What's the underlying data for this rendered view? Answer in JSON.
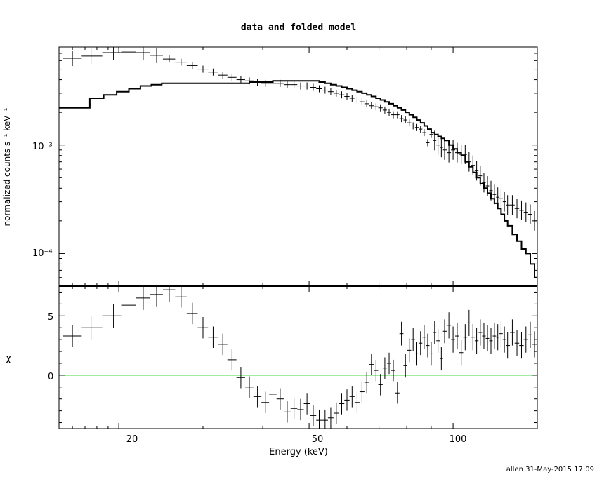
{
  "chart_data": {
    "type": "scatter",
    "title": "data and folded model",
    "xlabel": "Energy (keV)",
    "x_scale": "log",
    "xlim": [
      15,
      150
    ],
    "x_ticks": [
      20,
      50,
      100
    ],
    "x_tick_labels": [
      "20",
      "50",
      "100"
    ],
    "top_panel": {
      "ylabel": "normalized counts s⁻¹ keV⁻¹",
      "y_scale": "log",
      "ylim": [
        5e-05,
        0.008
      ],
      "y_ticks": [
        0.0001,
        0.001
      ],
      "y_tick_labels": [
        "10⁻⁴",
        "10⁻³"
      ],
      "series": [
        {
          "kind": "data",
          "x": [
            16.0,
            17.5,
            19.5,
            21.0,
            22.5,
            24.0,
            25.5,
            27.0,
            28.5,
            30.0,
            31.5,
            33.0,
            34.5,
            36.0,
            37.5,
            39.0,
            40.5,
            42.0,
            43.5,
            45.0,
            46.5,
            48.0,
            49.5,
            51.0,
            52.5,
            54.0,
            55.5,
            57.0,
            58.5,
            60.0,
            61.5,
            63.0,
            64.5,
            66.0,
            67.5,
            69.0,
            70.5,
            72.0,
            73.5,
            75.0,
            76.5,
            78.0,
            79.5,
            81.0,
            82.5,
            84.0,
            85.5,
            87.0,
            88.5,
            90.0,
            91.5,
            93.0,
            94.5,
            96.0,
            98.0,
            100.0,
            102.0,
            104.0,
            106.0,
            108.0,
            110.0,
            112.0,
            114.0,
            116.0,
            118.0,
            120.0,
            122.0,
            124.0,
            126.0,
            128.0,
            130.0,
            133.0,
            136.0,
            139.0,
            142.0,
            145.0,
            148.0
          ],
          "y": [
            0.0063,
            0.0066,
            0.0071,
            0.0072,
            0.0071,
            0.0067,
            0.0062,
            0.0058,
            0.0054,
            0.005,
            0.0047,
            0.0044,
            0.0042,
            0.004,
            0.0039,
            0.0038,
            0.0037,
            0.0037,
            0.0037,
            0.0036,
            0.0036,
            0.0035,
            0.0035,
            0.0034,
            0.0033,
            0.0032,
            0.0031,
            0.003,
            0.0029,
            0.0028,
            0.0027,
            0.0026,
            0.0025,
            0.0024,
            0.0023,
            0.00225,
            0.0022,
            0.0021,
            0.002,
            0.0019,
            0.0019,
            0.00175,
            0.0017,
            0.0016,
            0.0015,
            0.00145,
            0.0014,
            0.0013,
            0.00105,
            0.00125,
            0.0011,
            0.001,
            0.00095,
            0.0009,
            0.00085,
            0.0009,
            0.00085,
            0.00082,
            0.00082,
            0.0007,
            0.00065,
            0.00058,
            0.00052,
            0.00045,
            0.00042,
            0.00038,
            0.00035,
            0.00033,
            0.00032,
            0.0003,
            0.00028,
            0.00028,
            0.00026,
            0.00025,
            0.00024,
            0.00023,
            0.0002
          ]
        },
        {
          "kind": "model",
          "x": [
            15.0,
            16.2,
            17.4,
            18.6,
            19.8,
            21.0,
            22.2,
            23.4,
            24.6,
            25.8,
            27.0,
            28.5,
            30.0,
            31.5,
            33.0,
            34.5,
            36.0,
            37.5,
            39.0,
            40.5,
            42.0,
            43.5,
            45.0,
            46.5,
            48.0,
            49.5,
            51.0,
            52.5,
            54.0,
            55.5,
            57.0,
            58.5,
            60.0,
            61.5,
            63.0,
            64.5,
            66.0,
            67.5,
            69.0,
            70.5,
            72.0,
            73.5,
            75.0,
            76.5,
            78.0,
            79.5,
            81.0,
            82.5,
            84.0,
            85.5,
            87.0,
            88.5,
            90.0,
            91.5,
            93.0,
            94.5,
            96.0,
            98.0,
            100.0,
            102.0,
            104.0,
            106.0,
            108.0,
            110.0,
            112.0,
            114.0,
            116.0,
            118.0,
            120.0,
            122.0,
            124.0,
            126.0,
            128.0,
            130.0,
            133.0,
            136.0,
            139.0,
            142.0,
            145.0,
            148.0,
            150.0
          ],
          "y": [
            0.0022,
            0.0022,
            0.0027,
            0.0029,
            0.0031,
            0.0033,
            0.0035,
            0.0036,
            0.0037,
            0.0037,
            0.0037,
            0.0037,
            0.0037,
            0.0037,
            0.0037,
            0.0037,
            0.0037,
            0.0038,
            0.0038,
            0.0038,
            0.0039,
            0.0039,
            0.0039,
            0.0039,
            0.0039,
            0.0039,
            0.0039,
            0.0038,
            0.0037,
            0.0036,
            0.0035,
            0.0034,
            0.0033,
            0.0032,
            0.0031,
            0.003,
            0.0029,
            0.0028,
            0.0027,
            0.0026,
            0.0025,
            0.0024,
            0.0023,
            0.0022,
            0.0021,
            0.002,
            0.0019,
            0.0018,
            0.0017,
            0.0016,
            0.0015,
            0.0014,
            0.0013,
            0.00125,
            0.0012,
            0.00115,
            0.0011,
            0.001,
            0.00092,
            0.00085,
            0.0008,
            0.0007,
            0.00063,
            0.00056,
            0.0005,
            0.00044,
            0.0004,
            0.00036,
            0.00032,
            0.00029,
            0.00026,
            0.00023,
            0.0002,
            0.00018,
            0.00015,
            0.00013,
            0.00011,
            0.0001,
            8e-05,
            6e-05,
            6e-05
          ]
        }
      ]
    },
    "bottom_panel": {
      "ylabel": "χ",
      "ylim": [
        -4.5,
        7.5
      ],
      "y_ticks": [
        0,
        5
      ],
      "y_tick_labels": [
        "0",
        "5"
      ],
      "reference_line": {
        "y": 0,
        "color": "#00cc00"
      },
      "series": [
        {
          "kind": "residuals",
          "x": [
            16.0,
            17.5,
            19.5,
            21.0,
            22.5,
            24.0,
            25.5,
            27.0,
            28.5,
            30.0,
            31.5,
            33.0,
            34.5,
            36.0,
            37.5,
            39.0,
            40.5,
            42.0,
            43.5,
            45.0,
            46.5,
            48.0,
            49.5,
            51.0,
            52.5,
            54.0,
            55.5,
            57.0,
            58.5,
            60.0,
            61.5,
            63.0,
            64.5,
            66.0,
            67.5,
            69.0,
            70.5,
            72.0,
            73.5,
            75.0,
            76.5,
            78.0,
            79.5,
            81.0,
            82.5,
            84.0,
            85.5,
            87.0,
            88.5,
            90.0,
            91.5,
            93.0,
            94.5,
            96.0,
            98.0,
            100.0,
            102.0,
            104.0,
            106.0,
            108.0,
            110.0,
            112.0,
            114.0,
            116.0,
            118.0,
            120.0,
            122.0,
            124.0,
            126.0,
            128.0,
            130.0,
            133.0,
            136.0,
            139.0,
            142.0,
            145.0,
            148.0
          ],
          "y": [
            3.3,
            4.0,
            5.0,
            5.9,
            6.5,
            6.8,
            7.2,
            6.6,
            5.2,
            4.0,
            3.2,
            2.6,
            1.3,
            -0.2,
            -1.0,
            -1.8,
            -2.3,
            -1.6,
            -2.0,
            -3.1,
            -2.8,
            -2.9,
            -2.4,
            -3.4,
            -3.8,
            -3.8,
            -3.6,
            -3.2,
            -2.4,
            -2.1,
            -1.8,
            -2.3,
            -1.4,
            -0.6,
            0.9,
            0.4,
            -0.8,
            0.6,
            1.0,
            0.4,
            -1.5,
            3.5,
            0.8,
            2.1,
            3.0,
            1.8,
            2.7,
            3.2,
            2.5,
            1.8,
            3.6,
            2.9,
            1.4,
            3.7,
            4.2,
            3.0,
            3.3,
            1.9,
            3.2,
            4.4,
            3.2,
            2.9,
            3.6,
            3.3,
            3.1,
            2.9,
            3.3,
            3.2,
            3.5,
            3.0,
            2.5,
            3.6,
            2.7,
            2.5,
            3.0,
            3.4,
            2.6
          ],
          "y_err": [
            0.9,
            1.0,
            1.0,
            1.1,
            1.0,
            1.0,
            1.0,
            0.9,
            0.9,
            0.9,
            0.9,
            0.9,
            0.9,
            0.9,
            0.9,
            0.9,
            0.9,
            0.9,
            0.9,
            0.9,
            0.9,
            0.9,
            0.9,
            0.9,
            0.9,
            0.9,
            0.9,
            0.9,
            0.9,
            0.9,
            0.9,
            0.9,
            0.9,
            0.9,
            0.9,
            0.9,
            0.9,
            0.9,
            0.9,
            0.9,
            0.9,
            1.0,
            1.0,
            1.0,
            1.0,
            1.0,
            1.0,
            1.0,
            1.0,
            1.0,
            1.0,
            1.0,
            1.0,
            1.0,
            1.1,
            1.1,
            1.1,
            1.1,
            1.1,
            1.1,
            1.1,
            1.1,
            1.1,
            1.1,
            1.1,
            1.1,
            1.1,
            1.1,
            1.1,
            1.1,
            1.1,
            1.1,
            1.1,
            1.1,
            1.1,
            1.1,
            1.1
          ]
        }
      ]
    },
    "footer": "allen 31-May-2015 17:09"
  }
}
